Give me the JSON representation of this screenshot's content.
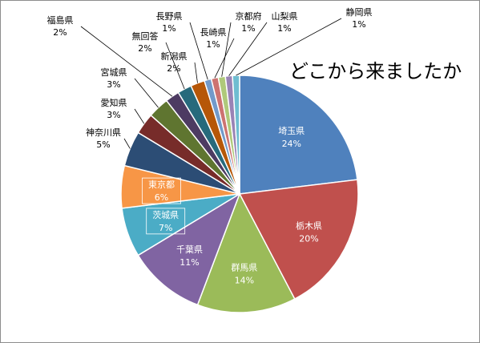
{
  "chart_data": {
    "type": "pie",
    "title": "どこから来ましたか",
    "slices": [
      {
        "label": "埼玉県",
        "value": 24,
        "pct_label": "24%",
        "color": "#4f81bd",
        "label_pos": "inside"
      },
      {
        "label": "栃木県",
        "value": 20,
        "pct_label": "20%",
        "color": "#c0504d",
        "label_pos": "inside"
      },
      {
        "label": "群馬県",
        "value": 14,
        "pct_label": "14%",
        "color": "#9bbb59",
        "label_pos": "inside"
      },
      {
        "label": "千葉県",
        "value": 11,
        "pct_label": "11%",
        "color": "#8064a2",
        "label_pos": "inside"
      },
      {
        "label": "茨城県",
        "value": 7,
        "pct_label": "7%",
        "color": "#4bacc6",
        "label_pos": "inside"
      },
      {
        "label": "東京都",
        "value": 6,
        "pct_label": "6%",
        "color": "#f79646",
        "label_pos": "inside"
      },
      {
        "label": "神奈川県",
        "value": 5,
        "pct_label": "5%",
        "color": "#2c4d75",
        "label_pos": "outside"
      },
      {
        "label": "愛知県",
        "value": 3,
        "pct_label": "3%",
        "color": "#772c2a",
        "label_pos": "outside"
      },
      {
        "label": "宮城県",
        "value": 3,
        "pct_label": "3%",
        "color": "#5f7530",
        "label_pos": "outside"
      },
      {
        "label": "福島県",
        "value": 2,
        "pct_label": "2%",
        "color": "#4d3b62",
        "label_pos": "outside"
      },
      {
        "label": "無回答",
        "value": 2,
        "pct_label": "2%",
        "color": "#276a7c",
        "label_pos": "outside"
      },
      {
        "label": "新潟県",
        "value": 2,
        "pct_label": "2%",
        "color": "#b65708",
        "label_pos": "outside"
      },
      {
        "label": "長野県",
        "value": 1,
        "pct_label": "1%",
        "color": "#729aca",
        "label_pos": "outside"
      },
      {
        "label": "長崎県",
        "value": 1,
        "pct_label": "1%",
        "color": "#cd7371",
        "label_pos": "outside"
      },
      {
        "label": "京都府",
        "value": 1,
        "pct_label": "1%",
        "color": "#afc97a",
        "label_pos": "outside"
      },
      {
        "label": "山梨県",
        "value": 1,
        "pct_label": "1%",
        "color": "#9983b5",
        "label_pos": "outside"
      },
      {
        "label": "静岡県",
        "value": 1,
        "pct_label": "1%",
        "color": "#6fbdd1",
        "label_pos": "outside"
      }
    ],
    "legend": "none"
  }
}
